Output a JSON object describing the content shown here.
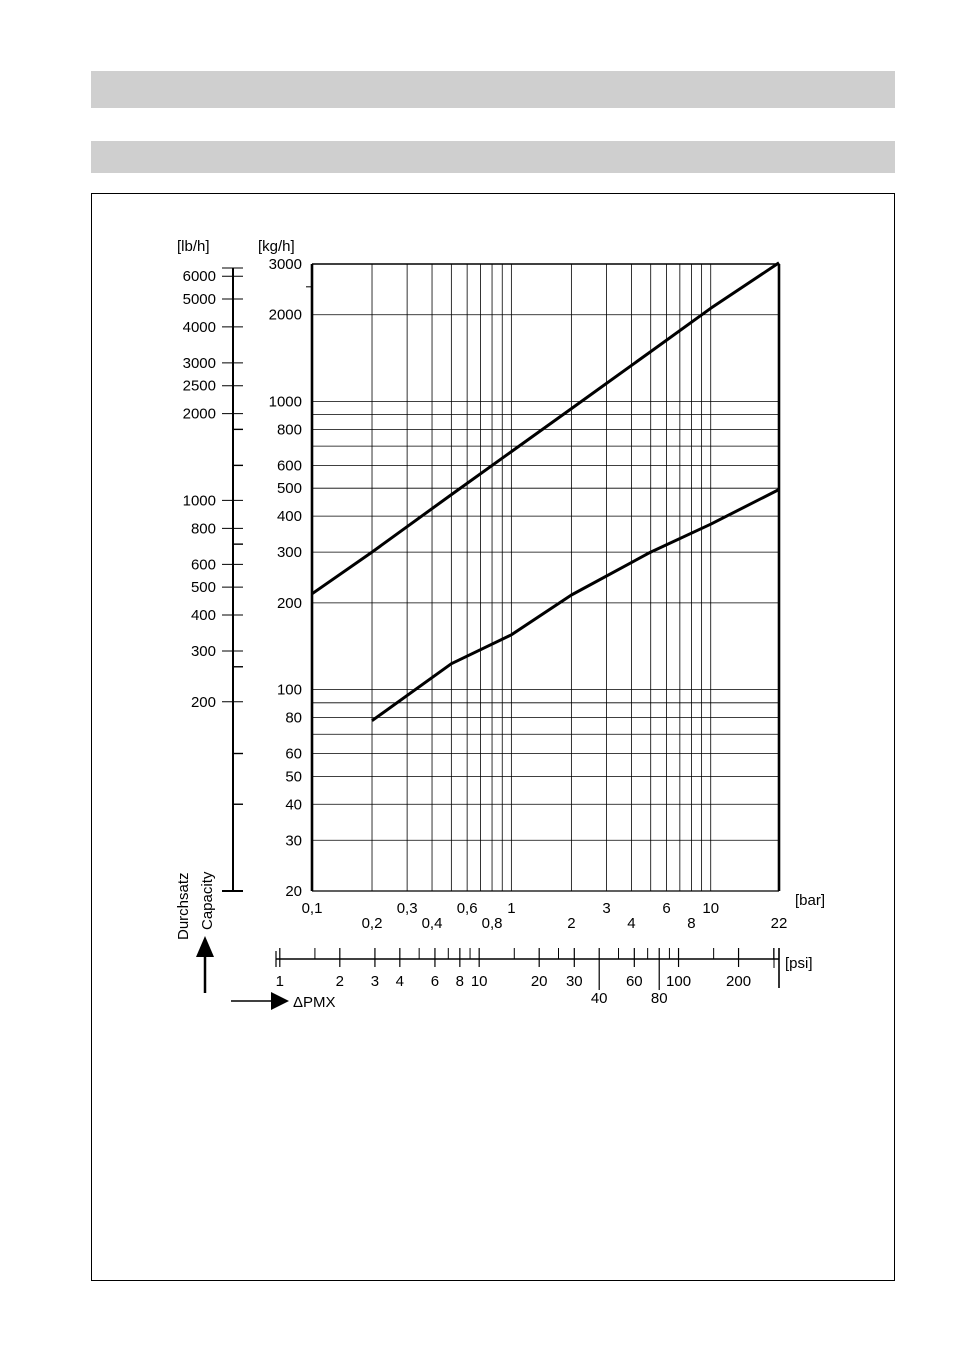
{
  "chart_data": {
    "type": "line",
    "title": "",
    "xlabel": "ΔPMX",
    "ylabel": "Durchsatz",
    "ylabel_en": "Capacity",
    "x_scale": "log",
    "y_scale": "log",
    "x_unit": "[bar]",
    "x_unit_secondary": "[psi]",
    "y_unit": "[kg/h]",
    "y_unit_secondary": "[lb/h]",
    "xlim": [
      0.1,
      22
    ],
    "ylim": [
      20,
      3000
    ],
    "grid": true,
    "bar_ticks": [
      {
        "v": 0.1,
        "label": "0,1",
        "row": 1
      },
      {
        "v": 0.2,
        "label": "0,2",
        "row": 2
      },
      {
        "v": 0.3,
        "label": "0,3",
        "row": 1
      },
      {
        "v": 0.4,
        "label": "0,4",
        "row": 2
      },
      {
        "v": 0.6,
        "label": "0,6",
        "row": 1
      },
      {
        "v": 0.8,
        "label": "0,8",
        "row": 2
      },
      {
        "v": 1,
        "label": "1",
        "row": 1
      },
      {
        "v": 2,
        "label": "2",
        "row": 2
      },
      {
        "v": 3,
        "label": "3",
        "row": 1
      },
      {
        "v": 4,
        "label": "4",
        "row": 2
      },
      {
        "v": 6,
        "label": "6",
        "row": 1
      },
      {
        "v": 8,
        "label": "8",
        "row": 2
      },
      {
        "v": 10,
        "label": "10",
        "row": 1
      },
      {
        "v": 22,
        "label": "22",
        "row": 2
      }
    ],
    "bar_grid": [
      0.1,
      0.2,
      0.3,
      0.4,
      0.5,
      0.6,
      0.7,
      0.8,
      0.9,
      1,
      2,
      3,
      4,
      5,
      6,
      7,
      8,
      9,
      10,
      22
    ],
    "kgh_ticks": [
      {
        "v": 20,
        "label": "20"
      },
      {
        "v": 30,
        "label": "30"
      },
      {
        "v": 40,
        "label": "40"
      },
      {
        "v": 50,
        "label": "50"
      },
      {
        "v": 60,
        "label": "60"
      },
      {
        "v": 80,
        "label": "80"
      },
      {
        "v": 100,
        "label": "100"
      },
      {
        "v": 200,
        "label": "200"
      },
      {
        "v": 300,
        "label": "300"
      },
      {
        "v": 400,
        "label": "400"
      },
      {
        "v": 500,
        "label": "500"
      },
      {
        "v": 600,
        "label": "600"
      },
      {
        "v": 800,
        "label": "800"
      },
      {
        "v": 1000,
        "label": "1000"
      },
      {
        "v": 2000,
        "label": "2000"
      },
      {
        "v": 3000,
        "label": "3000"
      }
    ],
    "kgh_grid": [
      20,
      30,
      40,
      50,
      60,
      70,
      80,
      90,
      100,
      200,
      300,
      400,
      500,
      600,
      700,
      800,
      900,
      1000,
      2000,
      3000
    ],
    "lbh_ticks": [
      {
        "v": 200,
        "label": "200"
      },
      {
        "v": 300,
        "label": "300"
      },
      {
        "v": 400,
        "label": "400"
      },
      {
        "v": 500,
        "label": "500"
      },
      {
        "v": 600,
        "label": "600"
      },
      {
        "v": 800,
        "label": "800"
      },
      {
        "v": 1000,
        "label": "1000"
      },
      {
        "v": 2000,
        "label": "2000"
      },
      {
        "v": 2500,
        "label": "2500"
      },
      {
        "v": 3000,
        "label": "3000"
      },
      {
        "v": 4000,
        "label": "4000"
      },
      {
        "v": 5000,
        "label": "5000"
      },
      {
        "v": 6000,
        "label": "6000"
      }
    ],
    "lbh_minor": [
      44.1,
      88.2,
      132.3,
      264.6,
      705,
      1323,
      1764
    ],
    "psi_ticks": [
      {
        "v": 1,
        "label": "1",
        "row": 1
      },
      {
        "v": 2,
        "label": "2",
        "row": 1
      },
      {
        "v": 3,
        "label": "3",
        "row": 1
      },
      {
        "v": 4,
        "label": "4",
        "row": 1
      },
      {
        "v": 6,
        "label": "6",
        "row": 1
      },
      {
        "v": 8,
        "label": "8",
        "row": 1
      },
      {
        "v": 10,
        "label": "10",
        "row": 1
      },
      {
        "v": 20,
        "label": "20",
        "row": 1
      },
      {
        "v": 30,
        "label": "30",
        "row": 1
      },
      {
        "v": 40,
        "label": "40",
        "row": 2
      },
      {
        "v": 60,
        "label": "60",
        "row": 1
      },
      {
        "v": 80,
        "label": "80",
        "row": 2
      },
      {
        "v": 100,
        "label": "100",
        "row": 1
      },
      {
        "v": 200,
        "label": "200",
        "row": 1
      }
    ],
    "psi_minor": [
      1.5,
      5,
      7,
      9,
      15,
      25,
      50,
      70,
      90,
      150,
      300
    ],
    "series": [
      {
        "x": [
          0.1,
          0.2,
          0.5,
          1,
          2,
          5,
          10,
          22
        ],
        "y": [
          215,
          300,
          475,
          670,
          945,
          1490,
          2105,
          3030
        ]
      },
      {
        "x": [
          0.2,
          0.5,
          1,
          2,
          5,
          10,
          22
        ],
        "y": [
          78,
          123,
          155,
          213,
          300,
          375,
          495
        ]
      }
    ]
  }
}
